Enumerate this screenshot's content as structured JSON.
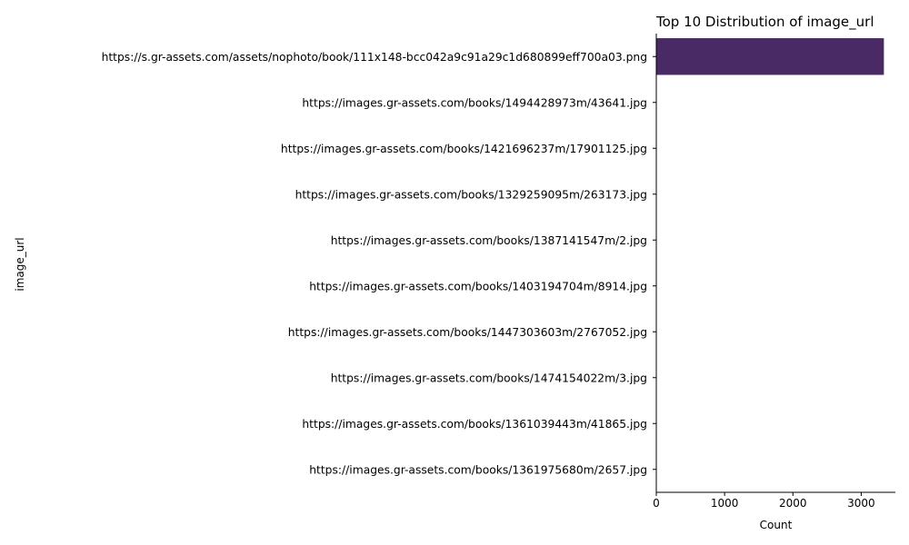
{
  "chart_data": {
    "type": "bar",
    "orientation": "horizontal",
    "title": "Top 10 Distribution of image_url",
    "xlabel": "Count",
    "ylabel": "image_url",
    "categories": [
      "https://s.gr-assets.com/assets/nophoto/book/111x148-bcc042a9c91a29c1d680899eff700a03.png",
      "https://images.gr-assets.com/books/1494428973m/43641.jpg",
      "https://images.gr-assets.com/books/1421696237m/17901125.jpg",
      "https://images.gr-assets.com/books/1329259095m/263173.jpg",
      "https://images.gr-assets.com/books/1387141547m/2.jpg",
      "https://images.gr-assets.com/books/1403194704m/8914.jpg",
      "https://images.gr-assets.com/books/1447303603m/2767052.jpg",
      "https://images.gr-assets.com/books/1474154022m/3.jpg",
      "https://images.gr-assets.com/books/1361039443m/41865.jpg",
      "https://images.gr-assets.com/books/1361975680m/2657.jpg"
    ],
    "values": [
      3332,
      1,
      1,
      1,
      1,
      1,
      1,
      1,
      1,
      1
    ],
    "colors": [
      "#4a2a65",
      "#472b73",
      "#3f3d80",
      "#344f87",
      "#2b6189",
      "#237389",
      "#1f8489",
      "#23958a",
      "#2da784",
      "#3fb877"
    ],
    "xlim": [
      0,
      3500
    ],
    "xticks": [
      "0",
      "1000",
      "2000",
      "3000"
    ],
    "grid": false,
    "legend": "none"
  }
}
